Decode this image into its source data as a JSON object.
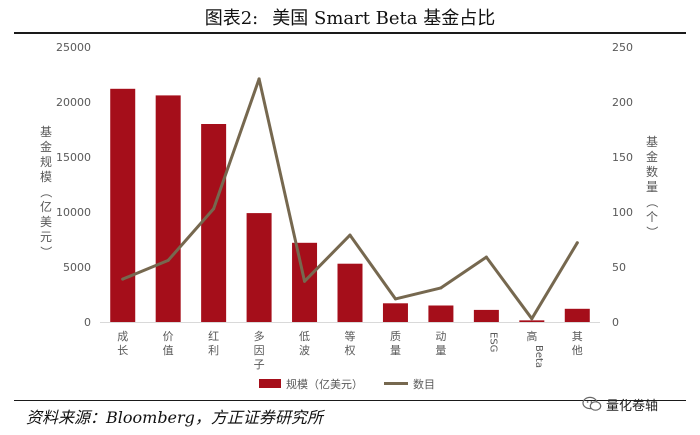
{
  "title": {
    "label": "图表2:",
    "text": "美国 Smart Beta 基金占比"
  },
  "source": "资料来源：Bloomberg，方正证券研究所",
  "watermark": {
    "text": "量化卷轴",
    "icon": "wechat-icon"
  },
  "colors": {
    "bar": "#a50e1a",
    "line": "#76684f",
    "axis": "#d9d9d9",
    "text": "#595959"
  },
  "chart_data": {
    "type": "bar+line",
    "categories": [
      "成长",
      "价值",
      "红利",
      "多因子",
      "低波",
      "等权",
      "质量",
      "动量",
      "ESG",
      "高Beta",
      "其他"
    ],
    "left_axis": {
      "label": "基金规模（亿美元）",
      "ticks": [
        "0",
        "5000",
        "10000",
        "15000",
        "20000",
        "25000"
      ],
      "range": [
        0,
        25000
      ]
    },
    "right_axis": {
      "label": "基金数量（个）",
      "ticks": [
        "0",
        "50",
        "100",
        "150",
        "200",
        "250"
      ],
      "range": [
        0,
        250
      ]
    },
    "series": [
      {
        "name": "规模（亿美元）",
        "type": "bar",
        "axis": "left",
        "values": [
          21200,
          20600,
          18000,
          9900,
          7200,
          5300,
          1700,
          1500,
          1100,
          150,
          1200
        ]
      },
      {
        "name": "数目",
        "type": "line",
        "axis": "right",
        "values": [
          39,
          56,
          103,
          221,
          37,
          79,
          21,
          31,
          59,
          3,
          72
        ]
      }
    ],
    "legend": {
      "position": "bottom",
      "items": [
        "规模（亿美元）",
        "数目"
      ]
    }
  }
}
